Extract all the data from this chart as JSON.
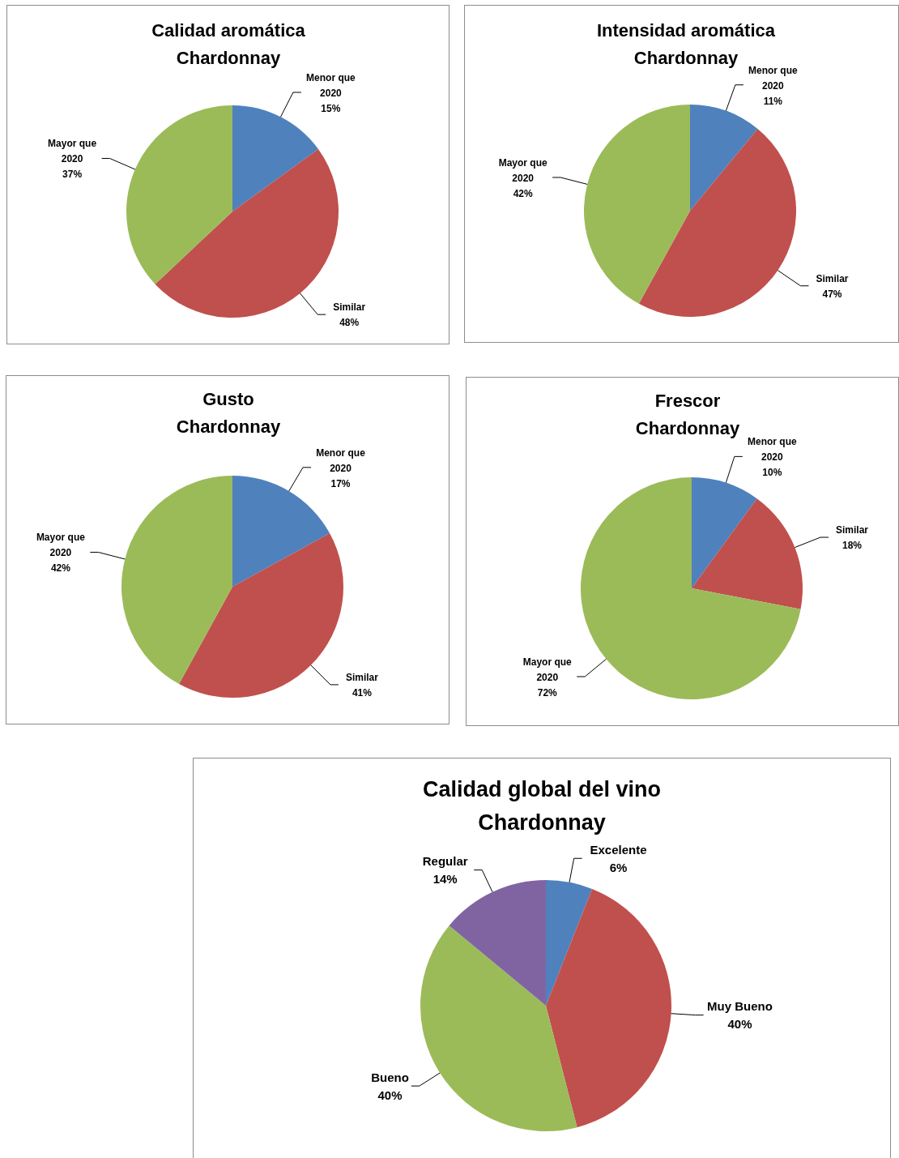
{
  "chart_data": [
    {
      "type": "pie",
      "title": "Calidad aromática\nChardonnay",
      "categories": [
        "Menor que 2020",
        "Similar",
        "Mayor que 2020"
      ],
      "values": [
        15,
        48,
        37
      ],
      "colors": [
        "#4f81bd",
        "#c0504d",
        "#9bbb59"
      ],
      "value_labels": [
        "15%",
        "48%",
        "37%"
      ]
    },
    {
      "type": "pie",
      "title": "Intensidad aromática\nChardonnay",
      "categories": [
        "Menor que 2020",
        "Similar",
        "Mayor que 2020"
      ],
      "values": [
        11,
        47,
        42
      ],
      "colors": [
        "#4f81bd",
        "#c0504d",
        "#9bbb59"
      ],
      "value_labels": [
        "11%",
        "47%",
        "42%"
      ]
    },
    {
      "type": "pie",
      "title": "Gusto\nChardonnay",
      "categories": [
        "Menor que 2020",
        "Similar",
        "Mayor que 2020"
      ],
      "values": [
        17,
        41,
        42
      ],
      "colors": [
        "#4f81bd",
        "#c0504d",
        "#9bbb59"
      ],
      "value_labels": [
        "17%",
        "41%",
        "42%"
      ]
    },
    {
      "type": "pie",
      "title": "Frescor\nChardonnay",
      "categories": [
        "Menor que 2020",
        "Similar",
        "Mayor que 2020"
      ],
      "values": [
        10,
        18,
        72
      ],
      "colors": [
        "#4f81bd",
        "#c0504d",
        "#9bbb59"
      ],
      "value_labels": [
        "10%",
        "18%",
        "72%"
      ]
    },
    {
      "type": "pie",
      "title": "Calidad global del vino\nChardonnay",
      "categories": [
        "Excelente",
        "Muy Bueno",
        "Bueno",
        "Regular"
      ],
      "values": [
        6,
        40,
        40,
        14
      ],
      "colors": [
        "#4f81bd",
        "#c0504d",
        "#9bbb59",
        "#8064a2"
      ],
      "value_labels": [
        "6%",
        "40%",
        "40%",
        "14%"
      ]
    }
  ]
}
